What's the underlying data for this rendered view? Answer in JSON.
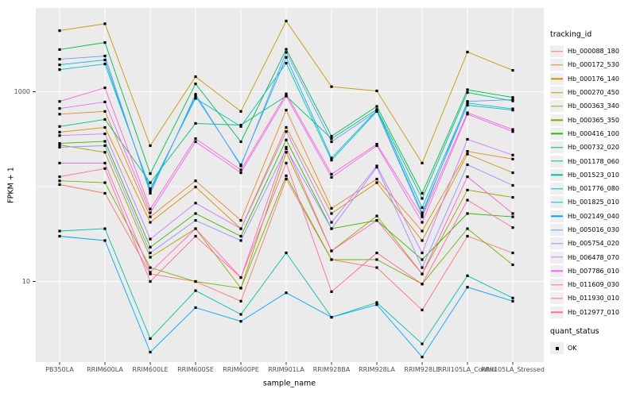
{
  "chart_data": {
    "type": "line",
    "title": "",
    "xlabel": "sample_name",
    "ylabel": "FPKM + 1",
    "y_scale": "log10",
    "grid": true,
    "legend_position": "right",
    "ylim": [
      1.4,
      7500
    ],
    "y_ticks": [
      {
        "value": 1000,
        "label": "1000"
      },
      {
        "value": 10,
        "label": "10"
      }
    ],
    "y_minor_gridlines": [
      100
    ],
    "categories": [
      "PB350LA",
      "RRIM600LA",
      "RRIM600LE",
      "RRIM600SE",
      "RRIM600PE",
      "RRIM901LA",
      "RRIM928BA",
      "RRIM928LA",
      "RRIM928LE",
      "RRII105LA_Control",
      "RRII105LA_Stressed"
    ],
    "series": [
      {
        "name": "Hb_000088_180",
        "color": "#F8766D",
        "values": [
          105,
          85,
          12,
          10,
          6.2,
          120,
          17,
          14,
          5,
          30,
          20
        ]
      },
      {
        "name": "Hb_000172_530",
        "color": "#E88526",
        "values": [
          580,
          620,
          48,
          115,
          44,
          640,
          59,
          120,
          34,
          235,
          195
        ]
      },
      {
        "name": "Hb_000176_140",
        "color": "#D39200",
        "values": [
          375,
          420,
          42,
          99,
          36,
          420,
          52,
          110,
          27,
          220,
          140
        ]
      },
      {
        "name": "Hb_000270_450",
        "color": "#C49A00",
        "values": [
          4400,
          5200,
          270,
          1440,
          620,
          5560,
          1130,
          1020,
          177,
          2620,
          1680
        ]
      },
      {
        "name": "Hb_000363_340",
        "color": "#A3A500",
        "values": [
          275,
          230,
          18,
          36,
          8.5,
          230,
          21,
          49,
          12,
          92,
          77
        ]
      },
      {
        "name": "Hb_000365_350",
        "color": "#7CAE00",
        "values": [
          115,
          110,
          14,
          10,
          8.5,
          130,
          17,
          17,
          9.4,
          36,
          15
        ]
      },
      {
        "name": "Hb_000416_100",
        "color": "#39B600",
        "values": [
          285,
          300,
          23,
          52,
          30,
          310,
          36,
          44,
          17,
          52,
          48
        ]
      },
      {
        "name": "Hb_000732_020",
        "color": "#00BB4E",
        "values": [
          2780,
          3300,
          137,
          1210,
          297,
          2800,
          340,
          700,
          85,
          1050,
          870
        ]
      },
      {
        "name": "Hb_001178_060",
        "color": "#00BF7D",
        "values": [
          430,
          510,
          110,
          463,
          445,
          900,
          320,
          650,
          75,
          980,
          800
        ]
      },
      {
        "name": "Hb_001523_010",
        "color": "#00C1A3",
        "values": [
          34,
          36,
          2.5,
          8,
          4.5,
          20,
          4.2,
          6,
          2.2,
          11.5,
          6.7
        ]
      },
      {
        "name": "Hb_001776_080",
        "color": "#00BFC4",
        "values": [
          1710,
          1960,
          95,
          850,
          430,
          2000,
          190,
          620,
          53,
          720,
          640
        ]
      },
      {
        "name": "Hb_001825_010",
        "color": "#00B8E5",
        "values": [
          1920,
          2160,
          90,
          900,
          170,
          2300,
          200,
          640,
          60,
          760,
          660
        ]
      },
      {
        "name": "Hb_002149_040",
        "color": "#00A5FF",
        "values": [
          30,
          27,
          1.8,
          5.3,
          3.8,
          7.6,
          4.2,
          5.7,
          1.6,
          8.7,
          6.2
        ]
      },
      {
        "name": "Hb_005016_030",
        "color": "#619CFF",
        "values": [
          2200,
          2380,
          85,
          940,
          165,
          2600,
          297,
          620,
          50,
          790,
          825
        ]
      },
      {
        "name": "Hb_005754_020",
        "color": "#9590FF",
        "values": [
          260,
          270,
          20,
          44,
          27,
          250,
          36,
          160,
          14,
          170,
          103
        ]
      },
      {
        "name": "Hb_006478_070",
        "color": "#C77CFF",
        "values": [
          345,
          360,
          28,
          67,
          36,
          380,
          42,
          165,
          20,
          315,
          215
        ]
      },
      {
        "name": "Hb_007786_010",
        "color": "#E76BF3",
        "values": [
          665,
          780,
          53,
          297,
          140,
          900,
          125,
          270,
          42,
          580,
          380
        ]
      },
      {
        "name": "Hb_011609_030",
        "color": "#FF61CC",
        "values": [
          790,
          1100,
          58,
          320,
          150,
          950,
          135,
          280,
          48,
          600,
          400
        ]
      },
      {
        "name": "Hb_011930_010",
        "color": "#FF62BC",
        "values": [
          177,
          177,
          12.5,
          36,
          11,
          260,
          21,
          44,
          12,
          127,
          52
        ]
      },
      {
        "name": "Hb_012977_010",
        "color": "#FF6A98",
        "values": [
          127,
          155,
          10,
          30,
          11,
          177,
          7.8,
          20,
          9.4,
          72,
          37
        ]
      }
    ]
  },
  "legend": {
    "tracking_title": "tracking_id",
    "quant_title": "quant_status",
    "quant_items": [
      {
        "label": "OK",
        "marker": "black-square"
      }
    ]
  },
  "colors": {
    "panel_bg": "#EBEBEB",
    "gridline": "#FFFFFF",
    "point": "#000000",
    "axis_text": "#4D4D4D",
    "legend_key_bg": "#EFEFEF"
  }
}
